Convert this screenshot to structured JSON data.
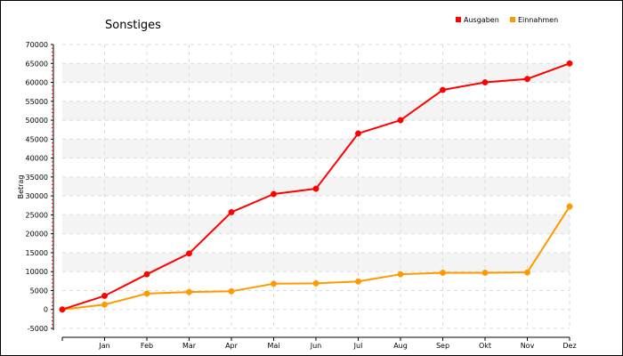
{
  "chart_data": {
    "type": "line",
    "title": "Sonstiges",
    "xlabel": "",
    "ylabel": "Betrag",
    "categories": [
      "",
      "Jan",
      "Feb",
      "Mar",
      "Apr",
      "Mai",
      "Jun",
      "Jul",
      "Aug",
      "Sep",
      "Okt",
      "Nov",
      "Dez"
    ],
    "ylim": [
      -5000,
      70000
    ],
    "yticks": [
      -5000,
      0,
      5000,
      10000,
      15000,
      20000,
      25000,
      30000,
      35000,
      40000,
      45000,
      50000,
      55000,
      60000,
      65000,
      70000
    ],
    "grid": true,
    "legend_position": "top-right",
    "series": [
      {
        "name": "Ausgaben",
        "color": "#ff0000",
        "values": [
          0,
          3600,
          9300,
          14800,
          25700,
          30500,
          31900,
          46500,
          50000,
          58000,
          60000,
          60900,
          65000
        ]
      },
      {
        "name": "Einnahmen",
        "color": "#ff9900",
        "values": [
          0,
          1300,
          4200,
          4600,
          4800,
          6800,
          6900,
          7400,
          9300,
          9700,
          9700,
          9800,
          27200
        ]
      }
    ]
  }
}
